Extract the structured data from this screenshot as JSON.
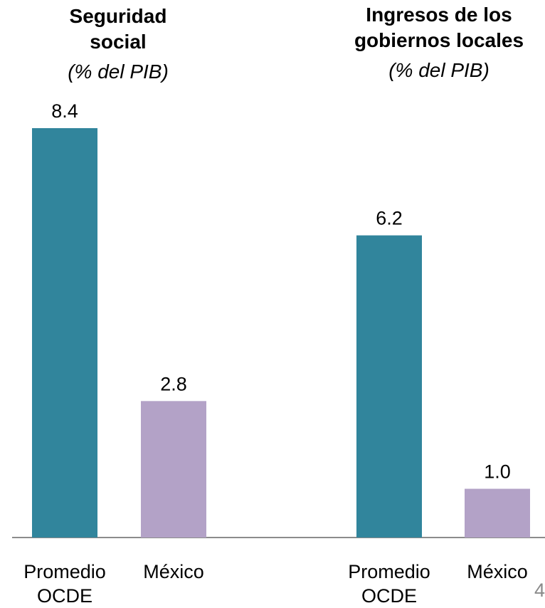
{
  "page_number": "4",
  "chart_data": [
    {
      "type": "bar",
      "title": "Seguridad social",
      "subtitle": "(% del PIB)",
      "categories": [
        "Promedio OCDE",
        "México"
      ],
      "values": [
        8.4,
        2.8
      ],
      "value_labels": [
        "8.4",
        "2.8"
      ],
      "colors": [
        "#31859C",
        "#B3A2C7"
      ],
      "ylim": [
        0,
        9.5
      ]
    },
    {
      "type": "bar",
      "title": "Ingresos de los gobiernos locales",
      "subtitle": "(% del PIB)",
      "categories": [
        "Promedio OCDE",
        "México"
      ],
      "values": [
        6.2,
        1.0
      ],
      "value_labels": [
        "6.2",
        "1.0"
      ],
      "colors": [
        "#31859C",
        "#B3A2C7"
      ],
      "ylim": [
        0,
        9.5
      ]
    }
  ]
}
